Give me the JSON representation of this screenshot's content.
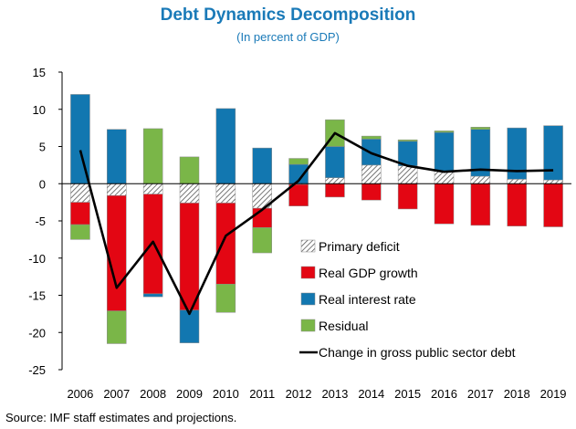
{
  "title": "Debt Dynamics Decomposition",
  "subtitle": "(In percent of GDP)",
  "source": "Source: IMF staff estimates and projections.",
  "chart_data": {
    "type": "bar",
    "stacked": true,
    "categories": [
      "2006",
      "2007",
      "2008",
      "2009",
      "2010",
      "2011",
      "2012",
      "2013",
      "2014",
      "2015",
      "2016",
      "2017",
      "2018",
      "2019"
    ],
    "ylim": [
      -25,
      15
    ],
    "yticks": [
      15,
      10,
      5,
      0,
      -5,
      -10,
      -15,
      -20,
      -25
    ],
    "grid": false,
    "legend_position": "lower-right",
    "colors": {
      "primary_deficit": "#ffffff",
      "real_gdp_growth": "#e30613",
      "real_interest_rate": "#1277b0",
      "residual": "#7ab648",
      "line": "#000000"
    },
    "series": [
      {
        "name": "Primary deficit",
        "key": "primary_deficit",
        "kind": "bar",
        "pattern": "hatch",
        "values": [
          -2.5,
          -1.6,
          -1.4,
          -2.6,
          -2.6,
          -3.3,
          -0.1,
          0.8,
          2.5,
          2.4,
          1.7,
          1.0,
          0.6,
          0.5
        ]
      },
      {
        "name": "Real GDP growth",
        "key": "real_gdp_growth",
        "kind": "bar",
        "values": [
          -3.0,
          -15.5,
          -13.4,
          -14.4,
          -10.9,
          -2.6,
          -2.9,
          -1.8,
          -2.2,
          -3.4,
          -5.4,
          -5.6,
          -5.7,
          -5.8
        ]
      },
      {
        "name": "Real interest rate",
        "key": "real_interest_rate",
        "kind": "bar",
        "values": [
          12.0,
          7.3,
          -0.4,
          -4.4,
          10.1,
          4.8,
          2.6,
          4.2,
          3.5,
          3.3,
          5.2,
          6.3,
          6.9,
          7.3
        ]
      },
      {
        "name": "Residual",
        "key": "residual",
        "kind": "bar",
        "values": [
          -2.0,
          -4.4,
          7.4,
          3.6,
          -3.8,
          -3.4,
          0.8,
          3.6,
          0.4,
          0.2,
          0.2,
          0.3,
          0.0,
          0.0
        ]
      },
      {
        "name": "Change in gross public sector debt",
        "key": "line",
        "kind": "line",
        "values": [
          4.5,
          -14.0,
          -7.8,
          -17.5,
          -7.0,
          -3.5,
          0.4,
          6.8,
          4.1,
          2.4,
          1.6,
          1.9,
          1.7,
          1.8
        ]
      }
    ]
  }
}
